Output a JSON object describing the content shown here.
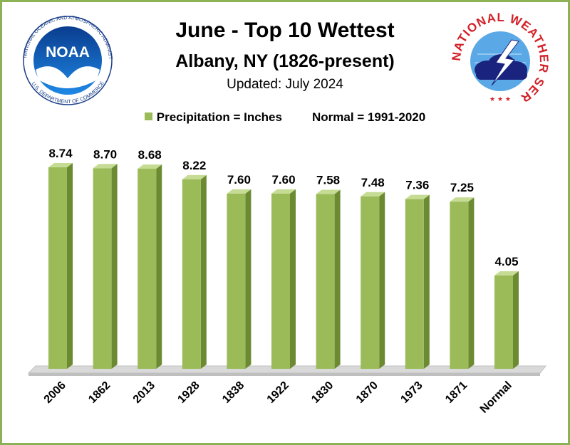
{
  "logos": {
    "noaa_text": "NOAA",
    "noaa_ring": "NATIONAL OCEANIC AND ATMOSPHERIC ADMINISTRATION",
    "noaa_ring_bottom": "U.S. DEPARTMENT OF COMMERCE",
    "nws_ring": "NATIONAL WEATHER SERVICE"
  },
  "colors": {
    "bar_front": "#9bbb59",
    "bar_side": "#6b8a31",
    "bar_top": "#c6dc94",
    "border": "#8db255",
    "floor": "#d9d9d9"
  },
  "chart_data": {
    "type": "bar",
    "title": "June - Top 10 Wettest",
    "subtitle": "Albany, NY (1826-present)",
    "updated": "Updated: July 2024",
    "legend": {
      "series_name": "Precipitation = Inches",
      "note": "Normal = 1991-2020",
      "position": "top"
    },
    "categories": [
      "2006",
      "1862",
      "2013",
      "1928",
      "1838",
      "1922",
      "1830",
      "1870",
      "1973",
      "1871",
      "Normal"
    ],
    "values": [
      8.74,
      8.7,
      8.68,
      8.22,
      7.6,
      7.6,
      7.58,
      7.48,
      7.36,
      7.25,
      4.05
    ],
    "labels": [
      "8.74",
      "8.70",
      "8.68",
      "8.22",
      "7.60",
      "7.60",
      "7.58",
      "7.48",
      "7.36",
      "7.25",
      "4.05"
    ],
    "ylim": [
      0,
      10
    ],
    "grid": false
  }
}
